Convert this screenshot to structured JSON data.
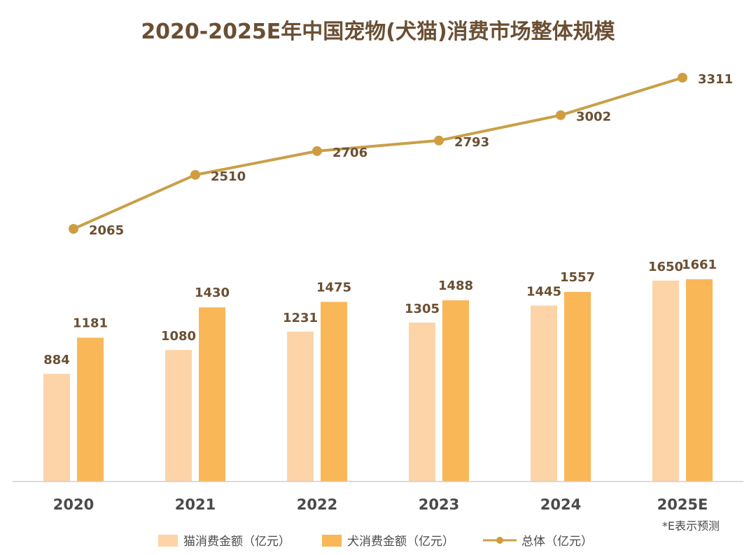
{
  "title": "2020-2025E年中国宠物(犬猫)消费市场整体规模",
  "note": "*E表示预测",
  "colors": {
    "cat": "#fcd4a8",
    "dog": "#f9b757",
    "total": "#c9a048",
    "text": "#6b4f33",
    "axis": "#cfcfcf"
  },
  "legend": {
    "cat": "猫消费金额（亿元）",
    "dog": "犬消费金额（亿元）",
    "total": "总体（亿元）"
  },
  "chart_data": {
    "type": "bar",
    "title": "2020-2025E年中国宠物(犬猫)消费市场整体规模",
    "categories": [
      "2020",
      "2021",
      "2022",
      "2023",
      "2024",
      "2025E"
    ],
    "series": [
      {
        "name": "猫消费金额（亿元）",
        "type": "bar",
        "values": [
          884,
          1080,
          1231,
          1305,
          1445,
          1650
        ]
      },
      {
        "name": "犬消费金额（亿元）",
        "type": "bar",
        "values": [
          1181,
          1430,
          1475,
          1488,
          1557,
          1661
        ]
      },
      {
        "name": "总体（亿元）",
        "type": "line",
        "values": [
          2065,
          2510,
          2706,
          2793,
          3002,
          3311
        ]
      }
    ],
    "xlabel": "",
    "ylabel": "",
    "grid": false,
    "legend_position": "bottom"
  }
}
